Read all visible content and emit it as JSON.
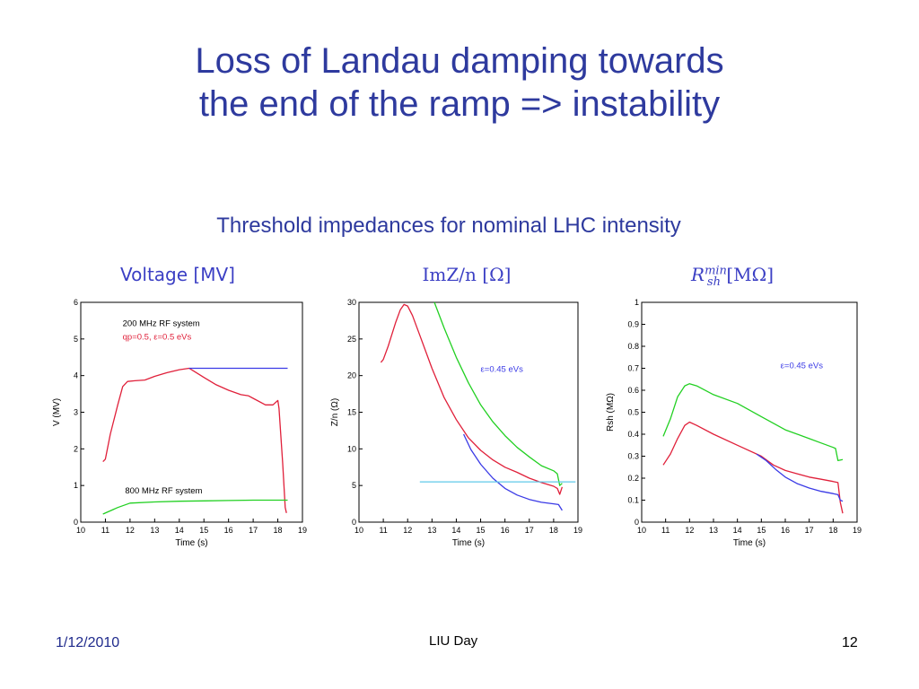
{
  "slide": {
    "title_line1": "Loss of Landau damping towards",
    "title_line2": "the end of the ramp => instability",
    "subtitle": "Threshold impedances for nominal LHC intensity",
    "panel_headers": [
      "Voltage [MV]",
      "ImZ/n [Ω]",
      "[MΩ]"
    ],
    "panel3_symbol": "R",
    "panel3_sup": "min",
    "panel3_sub": "sh",
    "footer_date": "1/12/2010",
    "footer_center": "LIU Day",
    "footer_page": "12"
  },
  "colors": {
    "red": "#e0203a",
    "green": "#22d022",
    "blue": "#3a3ae6",
    "title": "#2e3a9e"
  },
  "chart_data": [
    {
      "type": "line",
      "xlabel": "Time (s)",
      "ylabel": "V (MV)",
      "xlim": [
        10,
        19
      ],
      "ylim": [
        0,
        6
      ],
      "xticks": [
        10,
        11,
        12,
        13,
        14,
        15,
        16,
        17,
        18,
        19
      ],
      "yticks": [
        0,
        1,
        2,
        3,
        4,
        5,
        6
      ],
      "annotations": [
        {
          "text": "200 MHz RF system",
          "x": 11.7,
          "y": 5.35,
          "color": "#000000"
        },
        {
          "text": "qp=0.5, ε=0.5 eVs",
          "x": 11.7,
          "y": 4.98,
          "color": "#e0203a"
        },
        {
          "text": "800 MHz RF system",
          "x": 11.8,
          "y": 0.78,
          "color": "#000000"
        }
      ],
      "series": [
        {
          "color": "#e0203a",
          "points": [
            [
              10.9,
              1.65
            ],
            [
              11.0,
              1.72
            ],
            [
              11.2,
              2.4
            ],
            [
              11.5,
              3.2
            ],
            [
              11.7,
              3.7
            ],
            [
              11.9,
              3.84
            ],
            [
              12.2,
              3.86
            ],
            [
              12.6,
              3.88
            ],
            [
              13.0,
              3.98
            ],
            [
              13.5,
              4.08
            ],
            [
              14.0,
              4.16
            ],
            [
              14.4,
              4.2
            ],
            [
              14.6,
              4.12
            ],
            [
              15.0,
              3.95
            ],
            [
              15.5,
              3.75
            ],
            [
              16.0,
              3.6
            ],
            [
              16.5,
              3.48
            ],
            [
              16.8,
              3.45
            ],
            [
              17.0,
              3.38
            ],
            [
              17.5,
              3.2
            ],
            [
              17.8,
              3.2
            ],
            [
              18.0,
              3.32
            ],
            [
              18.05,
              3.1
            ],
            [
              18.2,
              1.6
            ],
            [
              18.3,
              0.4
            ],
            [
              18.35,
              0.25
            ]
          ]
        },
        {
          "color": "#3a3ae6",
          "points": [
            [
              14.4,
              4.2
            ],
            [
              18.4,
              4.2
            ]
          ]
        },
        {
          "color": "#22d022",
          "points": [
            [
              10.9,
              0.22
            ],
            [
              11.5,
              0.4
            ],
            [
              12.0,
              0.52
            ],
            [
              13.0,
              0.55
            ],
            [
              14.0,
              0.57
            ],
            [
              15.0,
              0.58
            ],
            [
              16.0,
              0.59
            ],
            [
              17.0,
              0.6
            ],
            [
              18.4,
              0.6
            ]
          ]
        }
      ]
    },
    {
      "type": "line",
      "xlabel": "Time (s)",
      "ylabel": "Z/n (Ω)",
      "xlim": [
        10,
        19
      ],
      "ylim": [
        0,
        30
      ],
      "xticks": [
        10,
        11,
        12,
        13,
        14,
        15,
        16,
        17,
        18,
        19
      ],
      "yticks": [
        0,
        5,
        10,
        15,
        20,
        25,
        30
      ],
      "annotations": [
        {
          "text": "ε=0.45 eVs",
          "x": 15.0,
          "y": 20.5,
          "color": "#3a3ae6"
        }
      ],
      "series": [
        {
          "color": "#e0203a",
          "points": [
            [
              10.9,
              21.8
            ],
            [
              11.0,
              22.2
            ],
            [
              11.2,
              24.0
            ],
            [
              11.5,
              27.2
            ],
            [
              11.7,
              29.0
            ],
            [
              11.85,
              29.7
            ],
            [
              12.0,
              29.5
            ],
            [
              12.2,
              28.2
            ],
            [
              12.5,
              25.5
            ],
            [
              13.0,
              21.0
            ],
            [
              13.5,
              17.0
            ],
            [
              14.0,
              14.0
            ],
            [
              14.5,
              11.5
            ],
            [
              15.0,
              9.8
            ],
            [
              15.5,
              8.5
            ],
            [
              16.0,
              7.5
            ],
            [
              16.5,
              6.8
            ],
            [
              17.0,
              6.0
            ],
            [
              17.5,
              5.4
            ],
            [
              18.0,
              4.9
            ],
            [
              18.15,
              4.6
            ],
            [
              18.25,
              3.8
            ],
            [
              18.35,
              4.8
            ]
          ]
        },
        {
          "color": "#22d022",
          "points": [
            [
              13.1,
              30.0
            ],
            [
              13.5,
              26.5
            ],
            [
              14.0,
              22.5
            ],
            [
              14.5,
              19.0
            ],
            [
              15.0,
              16.0
            ],
            [
              15.5,
              13.7
            ],
            [
              16.0,
              11.8
            ],
            [
              16.5,
              10.2
            ],
            [
              17.0,
              8.9
            ],
            [
              17.5,
              7.7
            ],
            [
              18.0,
              7.0
            ],
            [
              18.15,
              6.6
            ],
            [
              18.25,
              5.0
            ],
            [
              18.35,
              5.3
            ]
          ]
        },
        {
          "color": "#3a3ae6",
          "points": [
            [
              14.3,
              12.0
            ],
            [
              14.6,
              9.9
            ],
            [
              15.0,
              7.9
            ],
            [
              15.5,
              6.0
            ],
            [
              16.0,
              4.6
            ],
            [
              16.5,
              3.7
            ],
            [
              17.0,
              3.1
            ],
            [
              17.5,
              2.7
            ],
            [
              18.0,
              2.5
            ],
            [
              18.2,
              2.4
            ],
            [
              18.35,
              1.6
            ]
          ]
        },
        {
          "color": "#5fc8e8",
          "points": [
            [
              12.5,
              5.5
            ],
            [
              18.9,
              5.5
            ]
          ]
        }
      ]
    },
    {
      "type": "line",
      "xlabel": "Time (s)",
      "ylabel": "Rsh (MΩ)",
      "xlim": [
        10,
        19
      ],
      "ylim": [
        0,
        1
      ],
      "xticks": [
        10,
        11,
        12,
        13,
        14,
        15,
        16,
        17,
        18,
        19
      ],
      "yticks": [
        0,
        0.1,
        0.2,
        0.3,
        0.4,
        0.5,
        0.6,
        0.7,
        0.8,
        0.9,
        1
      ],
      "annotations": [
        {
          "text": "ε=0.45 eVs",
          "x": 15.8,
          "y": 0.7,
          "color": "#3a3ae6"
        }
      ],
      "series": [
        {
          "color": "#22d022",
          "points": [
            [
              10.9,
              0.39
            ],
            [
              11.2,
              0.47
            ],
            [
              11.5,
              0.57
            ],
            [
              11.8,
              0.62
            ],
            [
              12.0,
              0.63
            ],
            [
              12.3,
              0.62
            ],
            [
              13.0,
              0.58
            ],
            [
              14.0,
              0.54
            ],
            [
              15.0,
              0.48
            ],
            [
              16.0,
              0.42
            ],
            [
              17.0,
              0.38
            ],
            [
              17.5,
              0.36
            ],
            [
              18.0,
              0.34
            ],
            [
              18.1,
              0.335
            ],
            [
              18.2,
              0.28
            ],
            [
              18.4,
              0.285
            ]
          ]
        },
        {
          "color": "#e0203a",
          "points": [
            [
              10.9,
              0.26
            ],
            [
              11.2,
              0.31
            ],
            [
              11.5,
              0.38
            ],
            [
              11.8,
              0.44
            ],
            [
              12.0,
              0.455
            ],
            [
              12.3,
              0.44
            ],
            [
              13.0,
              0.4
            ],
            [
              14.0,
              0.35
            ],
            [
              15.0,
              0.3
            ],
            [
              15.5,
              0.26
            ],
            [
              16.0,
              0.235
            ],
            [
              16.5,
              0.22
            ],
            [
              17.0,
              0.205
            ],
            [
              17.5,
              0.195
            ],
            [
              18.0,
              0.185
            ],
            [
              18.2,
              0.18
            ],
            [
              18.3,
              0.09
            ],
            [
              18.4,
              0.04
            ]
          ]
        },
        {
          "color": "#3a3ae6",
          "points": [
            [
              14.8,
              0.31
            ],
            [
              15.2,
              0.28
            ],
            [
              15.6,
              0.24
            ],
            [
              16.0,
              0.205
            ],
            [
              16.5,
              0.175
            ],
            [
              17.0,
              0.155
            ],
            [
              17.5,
              0.14
            ],
            [
              18.0,
              0.13
            ],
            [
              18.2,
              0.125
            ],
            [
              18.3,
              0.1
            ],
            [
              18.4,
              0.095
            ]
          ]
        }
      ]
    }
  ]
}
